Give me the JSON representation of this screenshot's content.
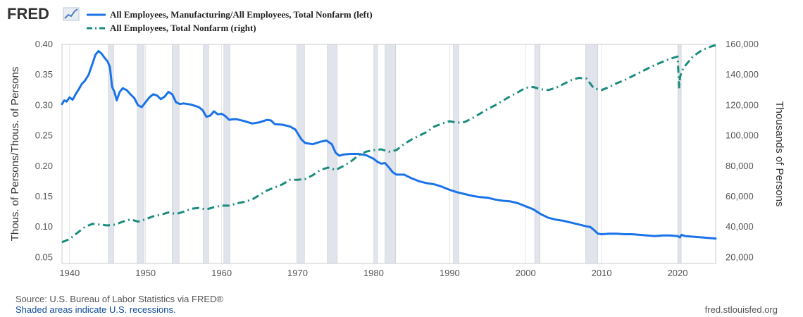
{
  "logo": {
    "text": "FRED"
  },
  "legend": [
    {
      "label": "All Employees, Manufacturing/All Employees, Total Nonfarm (left)",
      "color": "#1a73e8",
      "style": "solid"
    },
    {
      "label": "All Employees, Total Nonfarm (right)",
      "color": "#1a8c7e",
      "style": "dashdot"
    }
  ],
  "footer": {
    "source": "Source: U.S. Bureau of Labor Statistics via FRED®",
    "recession_note": "Shaded areas indicate U.S. recessions.",
    "site": "fred.stlouisfed.org"
  },
  "chart_data": {
    "type": "line",
    "title": "",
    "xlabel": "",
    "ylabel_left": "Thous. of Persons/Thous. of Persons",
    "ylabel_right": "Thousands of Persons",
    "xlim": [
      1939,
      2025
    ],
    "ylim_left": [
      0.04,
      0.4
    ],
    "ylim_right": [
      16000,
      160000
    ],
    "x_ticks": [
      "1940",
      "1950",
      "1960",
      "1970",
      "1980",
      "1990",
      "2000",
      "2010",
      "2020"
    ],
    "y_ticks_left": [
      "0.40",
      "0.35",
      "0.30",
      "0.25",
      "0.20",
      "0.15",
      "0.10",
      "0.05"
    ],
    "y_ticks_right": [
      "160,000",
      "140,000",
      "120,000",
      "100,000",
      "80,000",
      "60,000",
      "40,000",
      "20,000"
    ],
    "grid": "vertical",
    "recessions": [
      [
        1945.1,
        1945.8
      ],
      [
        1948.9,
        1949.8
      ],
      [
        1953.5,
        1954.4
      ],
      [
        1957.6,
        1958.3
      ],
      [
        1960.3,
        1961.1
      ],
      [
        1969.9,
        1970.9
      ],
      [
        1973.9,
        1975.2
      ],
      [
        1980.0,
        1980.5
      ],
      [
        1981.5,
        1982.9
      ],
      [
        1990.5,
        1991.2
      ],
      [
        2001.2,
        2001.9
      ],
      [
        2007.9,
        2009.5
      ],
      [
        2020.1,
        2020.3
      ]
    ],
    "series": [
      {
        "name": "All Employees, Manufacturing/All Employees, Total Nonfarm (left)",
        "axis": "left",
        "color": "#1a73e8",
        "x": [
          1939.0,
          1939.3,
          1939.6,
          1940.0,
          1940.4,
          1940.8,
          1941.2,
          1941.6,
          1942.0,
          1942.5,
          1943.0,
          1943.4,
          1943.8,
          1944.2,
          1944.6,
          1945.0,
          1945.3,
          1945.6,
          1945.9,
          1946.2,
          1946.6,
          1947.0,
          1947.5,
          1948.0,
          1948.5,
          1949.0,
          1949.5,
          1950.0,
          1950.5,
          1951.0,
          1951.5,
          1952.0,
          1952.5,
          1953.0,
          1953.5,
          1954.0,
          1954.5,
          1955.0,
          1955.5,
          1956.0,
          1956.5,
          1957.0,
          1957.5,
          1958.0,
          1958.5,
          1959.0,
          1959.5,
          1960.0,
          1960.5,
          1961.0,
          1961.5,
          1962.0,
          1963.0,
          1964.0,
          1965.0,
          1966.0,
          1966.5,
          1967.0,
          1968.0,
          1969.0,
          1969.7,
          1970.0,
          1970.5,
          1971.0,
          1972.0,
          1973.0,
          1973.8,
          1974.5,
          1975.0,
          1975.5,
          1976.0,
          1977.0,
          1978.0,
          1979.0,
          1979.5,
          1980.0,
          1980.5,
          1981.0,
          1981.5,
          1982.0,
          1982.5,
          1983.0,
          1984.0,
          1985.0,
          1986.0,
          1987.0,
          1988.0,
          1989.0,
          1990.0,
          1991.0,
          1992.0,
          1993.0,
          1994.0,
          1995.0,
          1996.0,
          1997.0,
          1998.0,
          1999.0,
          2000.0,
          2001.0,
          2002.0,
          2003.0,
          2004.0,
          2005.0,
          2006.0,
          2007.0,
          2008.0,
          2008.5,
          2009.0,
          2009.5,
          2010.0,
          2011.0,
          2012.0,
          2013.0,
          2014.0,
          2015.0,
          2016.0,
          2017.0,
          2018.0,
          2019.0,
          2020.0,
          2020.3,
          2020.5,
          2021.0,
          2022.0,
          2023.0,
          2024.0,
          2025.0
        ],
        "values": [
          0.302,
          0.308,
          0.306,
          0.313,
          0.309,
          0.318,
          0.326,
          0.335,
          0.34,
          0.35,
          0.368,
          0.383,
          0.389,
          0.385,
          0.378,
          0.372,
          0.363,
          0.33,
          0.322,
          0.308,
          0.322,
          0.328,
          0.325,
          0.318,
          0.312,
          0.3,
          0.297,
          0.305,
          0.313,
          0.318,
          0.316,
          0.31,
          0.314,
          0.322,
          0.318,
          0.305,
          0.302,
          0.303,
          0.302,
          0.301,
          0.299,
          0.297,
          0.292,
          0.281,
          0.283,
          0.29,
          0.285,
          0.286,
          0.282,
          0.276,
          0.277,
          0.277,
          0.274,
          0.27,
          0.272,
          0.276,
          0.275,
          0.269,
          0.268,
          0.265,
          0.26,
          0.254,
          0.244,
          0.238,
          0.236,
          0.24,
          0.242,
          0.236,
          0.222,
          0.217,
          0.219,
          0.22,
          0.22,
          0.218,
          0.215,
          0.212,
          0.207,
          0.204,
          0.205,
          0.198,
          0.19,
          0.186,
          0.186,
          0.18,
          0.175,
          0.172,
          0.17,
          0.166,
          0.161,
          0.157,
          0.154,
          0.151,
          0.149,
          0.148,
          0.145,
          0.143,
          0.142,
          0.139,
          0.134,
          0.129,
          0.121,
          0.115,
          0.112,
          0.11,
          0.107,
          0.104,
          0.101,
          0.1,
          0.095,
          0.089,
          0.088,
          0.089,
          0.089,
          0.088,
          0.088,
          0.087,
          0.086,
          0.085,
          0.086,
          0.086,
          0.085,
          0.083,
          0.087,
          0.085,
          0.084,
          0.083,
          0.082,
          0.081
        ]
      },
      {
        "name": "All Employees, Total Nonfarm (right)",
        "axis": "right",
        "color": "#1a8c7e",
        "x": [
          1939.0,
          1940.0,
          1941.0,
          1942.0,
          1943.0,
          1944.0,
          1945.0,
          1946.0,
          1947.0,
          1948.0,
          1949.0,
          1950.0,
          1951.0,
          1952.0,
          1953.0,
          1954.0,
          1955.0,
          1956.0,
          1957.0,
          1958.0,
          1959.0,
          1960.0,
          1961.0,
          1962.0,
          1963.0,
          1964.0,
          1965.0,
          1966.0,
          1967.0,
          1968.0,
          1969.0,
          1970.0,
          1971.0,
          1972.0,
          1973.0,
          1974.0,
          1975.0,
          1976.0,
          1977.0,
          1978.0,
          1979.0,
          1980.0,
          1981.0,
          1982.0,
          1983.0,
          1984.0,
          1985.0,
          1986.0,
          1987.0,
          1988.0,
          1989.0,
          1990.0,
          1991.0,
          1992.0,
          1993.0,
          1994.0,
          1995.0,
          1996.0,
          1997.0,
          1998.0,
          1999.0,
          2000.0,
          2001.0,
          2002.0,
          2003.0,
          2004.0,
          2005.0,
          2006.0,
          2007.0,
          2008.0,
          2009.0,
          2010.0,
          2011.0,
          2012.0,
          2013.0,
          2014.0,
          2015.0,
          2016.0,
          2017.0,
          2018.0,
          2019.0,
          2020.0,
          2020.2,
          2020.3,
          2020.5,
          2021.0,
          2022.0,
          2023.0,
          2024.0,
          2025.0
        ],
        "values": [
          30000,
          32000,
          36000,
          40000,
          42000,
          41500,
          41000,
          41500,
          43500,
          45000,
          43500,
          45000,
          47000,
          48000,
          49500,
          48500,
          50000,
          52000,
          52500,
          51500,
          53000,
          54000,
          54000,
          55500,
          56500,
          58000,
          61000,
          64000,
          66000,
          68000,
          71000,
          71000,
          71500,
          74000,
          77500,
          79000,
          77500,
          80000,
          83000,
          87000,
          89500,
          90500,
          91000,
          89500,
          90500,
          94500,
          97500,
          100000,
          102500,
          106000,
          108000,
          109500,
          108500,
          109000,
          111500,
          114500,
          117500,
          120000,
          123000,
          126000,
          128500,
          131500,
          132000,
          130500,
          130000,
          131500,
          134000,
          136500,
          138000,
          137500,
          131000,
          130000,
          132000,
          134500,
          136500,
          139000,
          141500,
          144000,
          146500,
          148500,
          150500,
          152000,
          131000,
          138000,
          142000,
          146000,
          152000,
          155500,
          158000,
          159500
        ]
      }
    ]
  }
}
